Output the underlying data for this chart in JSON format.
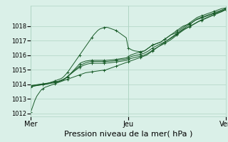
{
  "background_color": "#daf0e8",
  "plot_bg_color": "#daf0e8",
  "grid_color": "#b0d4c4",
  "line_color": "#1a5c2a",
  "xlabel": "Pression niveau de la mer( hPa )",
  "xlabel_fontsize": 8,
  "ylim": [
    1011.8,
    1019.4
  ],
  "yticks": [
    1012,
    1013,
    1014,
    1015,
    1016,
    1017,
    1018
  ],
  "xtick_labels": [
    "Mer",
    "Jeu",
    "Ven"
  ],
  "xtick_positions": [
    0,
    48,
    96
  ],
  "total_points": 97,
  "series": [
    [
      1012.1,
      1012.5,
      1012.9,
      1013.2,
      1013.4,
      1013.6,
      1013.7,
      1013.8,
      1013.85,
      1013.9,
      1013.95,
      1014.0,
      1014.05,
      1014.1,
      1014.15,
      1014.2,
      1014.25,
      1014.3,
      1014.35,
      1014.4,
      1014.45,
      1014.5,
      1014.55,
      1014.6,
      1014.65,
      1014.7,
      1014.75,
      1014.8,
      1014.82,
      1014.84,
      1014.86,
      1014.88,
      1014.9,
      1014.92,
      1014.94,
      1014.96,
      1014.98,
      1015.0,
      1015.05,
      1015.1,
      1015.15,
      1015.2,
      1015.25,
      1015.3,
      1015.35,
      1015.4,
      1015.45,
      1015.5,
      1015.55,
      1015.6,
      1015.65,
      1015.7,
      1015.75,
      1015.8,
      1015.85,
      1015.9,
      1015.95,
      1016.0,
      1016.1,
      1016.2,
      1016.3,
      1016.4,
      1016.5,
      1016.6,
      1016.7,
      1016.8,
      1016.9,
      1017.0,
      1017.1,
      1017.2,
      1017.3,
      1017.4,
      1017.5,
      1017.6,
      1017.7,
      1017.8,
      1017.9,
      1018.0,
      1018.1,
      1018.2,
      1018.3,
      1018.4,
      1018.5,
      1018.55,
      1018.6,
      1018.65,
      1018.7,
      1018.75,
      1018.8,
      1018.85,
      1018.9,
      1018.95,
      1019.0,
      1019.05,
      1019.1,
      1019.15,
      1019.2
    ],
    [
      1013.8,
      1013.85,
      1013.9,
      1013.92,
      1013.94,
      1013.96,
      1013.98,
      1014.0,
      1014.05,
      1014.1,
      1014.15,
      1014.2,
      1014.25,
      1014.3,
      1014.35,
      1014.4,
      1014.5,
      1014.65,
      1014.8,
      1015.0,
      1015.2,
      1015.4,
      1015.6,
      1015.8,
      1016.0,
      1016.2,
      1016.4,
      1016.6,
      1016.8,
      1017.0,
      1017.2,
      1017.4,
      1017.55,
      1017.7,
      1017.8,
      1017.85,
      1017.9,
      1017.92,
      1017.9,
      1017.85,
      1017.8,
      1017.75,
      1017.7,
      1017.6,
      1017.5,
      1017.4,
      1017.3,
      1017.2,
      1016.5,
      1016.42,
      1016.35,
      1016.3,
      1016.28,
      1016.26,
      1016.25,
      1016.28,
      1016.3,
      1016.4,
      1016.5,
      1016.6,
      1016.7,
      1016.75,
      1016.8,
      1016.85,
      1016.9,
      1017.0,
      1017.1,
      1017.2,
      1017.3,
      1017.4,
      1017.45,
      1017.5,
      1017.6,
      1017.7,
      1017.8,
      1017.9,
      1018.0,
      1018.1,
      1018.2,
      1018.3,
      1018.4,
      1018.5,
      1018.6,
      1018.65,
      1018.7,
      1018.75,
      1018.8,
      1018.85,
      1018.9,
      1018.95,
      1019.0,
      1019.05,
      1019.1,
      1019.15,
      1019.2,
      1019.22,
      1019.25
    ],
    [
      1013.85,
      1013.88,
      1013.9,
      1013.92,
      1013.95,
      1013.97,
      1013.98,
      1014.0,
      1014.02,
      1014.05,
      1014.08,
      1014.1,
      1014.12,
      1014.15,
      1014.2,
      1014.25,
      1014.3,
      1014.4,
      1014.5,
      1014.65,
      1014.8,
      1014.95,
      1015.1,
      1015.25,
      1015.4,
      1015.5,
      1015.55,
      1015.6,
      1015.62,
      1015.64,
      1015.65,
      1015.65,
      1015.65,
      1015.65,
      1015.65,
      1015.65,
      1015.65,
      1015.65,
      1015.66,
      1015.67,
      1015.68,
      1015.7,
      1015.72,
      1015.74,
      1015.76,
      1015.78,
      1015.8,
      1015.82,
      1015.9,
      1016.0,
      1016.05,
      1016.1,
      1016.15,
      1016.18,
      1016.2,
      1016.25,
      1016.3,
      1016.4,
      1016.5,
      1016.6,
      1016.7,
      1016.75,
      1016.8,
      1016.85,
      1016.9,
      1017.0,
      1017.1,
      1017.2,
      1017.3,
      1017.4,
      1017.5,
      1017.6,
      1017.7,
      1017.8,
      1017.9,
      1018.0,
      1018.05,
      1018.1,
      1018.15,
      1018.2,
      1018.3,
      1018.4,
      1018.45,
      1018.5,
      1018.55,
      1018.6,
      1018.65,
      1018.7,
      1018.75,
      1018.8,
      1018.85,
      1018.9,
      1018.95,
      1019.0,
      1019.05,
      1019.1,
      1019.15
    ],
    [
      1013.9,
      1013.92,
      1013.94,
      1013.96,
      1013.98,
      1014.0,
      1014.02,
      1014.04,
      1014.06,
      1014.08,
      1014.1,
      1014.12,
      1014.15,
      1014.18,
      1014.22,
      1014.27,
      1014.33,
      1014.42,
      1014.52,
      1014.65,
      1014.78,
      1014.9,
      1015.02,
      1015.14,
      1015.25,
      1015.34,
      1015.42,
      1015.48,
      1015.52,
      1015.55,
      1015.56,
      1015.57,
      1015.57,
      1015.57,
      1015.57,
      1015.57,
      1015.57,
      1015.57,
      1015.58,
      1015.59,
      1015.6,
      1015.62,
      1015.64,
      1015.66,
      1015.68,
      1015.7,
      1015.72,
      1015.74,
      1015.8,
      1015.88,
      1015.93,
      1015.97,
      1016.0,
      1016.03,
      1016.06,
      1016.1,
      1016.15,
      1016.22,
      1016.3,
      1016.4,
      1016.5,
      1016.58,
      1016.65,
      1016.72,
      1016.78,
      1016.85,
      1016.92,
      1017.0,
      1017.08,
      1017.16,
      1017.25,
      1017.35,
      1017.45,
      1017.55,
      1017.65,
      1017.75,
      1017.83,
      1017.9,
      1017.97,
      1018.04,
      1018.12,
      1018.2,
      1018.28,
      1018.35,
      1018.42,
      1018.48,
      1018.54,
      1018.6,
      1018.66,
      1018.72,
      1018.78,
      1018.84,
      1018.9,
      1018.95,
      1019.0,
      1019.08,
      1019.15
    ],
    [
      1013.92,
      1013.94,
      1013.96,
      1013.98,
      1014.0,
      1014.02,
      1014.04,
      1014.06,
      1014.08,
      1014.1,
      1014.12,
      1014.14,
      1014.17,
      1014.2,
      1014.24,
      1014.29,
      1014.35,
      1014.43,
      1014.53,
      1014.64,
      1014.75,
      1014.86,
      1014.97,
      1015.07,
      1015.16,
      1015.24,
      1015.31,
      1015.36,
      1015.4,
      1015.43,
      1015.44,
      1015.45,
      1015.45,
      1015.45,
      1015.45,
      1015.45,
      1015.45,
      1015.46,
      1015.47,
      1015.48,
      1015.5,
      1015.52,
      1015.54,
      1015.56,
      1015.58,
      1015.6,
      1015.62,
      1015.64,
      1015.7,
      1015.76,
      1015.8,
      1015.84,
      1015.87,
      1015.9,
      1015.93,
      1015.97,
      1016.02,
      1016.08,
      1016.16,
      1016.25,
      1016.35,
      1016.44,
      1016.52,
      1016.6,
      1016.67,
      1016.74,
      1016.82,
      1016.9,
      1016.98,
      1017.07,
      1017.17,
      1017.28,
      1017.39,
      1017.5,
      1017.6,
      1017.7,
      1017.79,
      1017.87,
      1017.95,
      1018.02,
      1018.1,
      1018.18,
      1018.26,
      1018.33,
      1018.39,
      1018.45,
      1018.51,
      1018.57,
      1018.63,
      1018.69,
      1018.75,
      1018.81,
      1018.87,
      1018.93,
      1018.98,
      1019.05,
      1019.12
    ]
  ],
  "marker_step": 6,
  "marker": "+"
}
